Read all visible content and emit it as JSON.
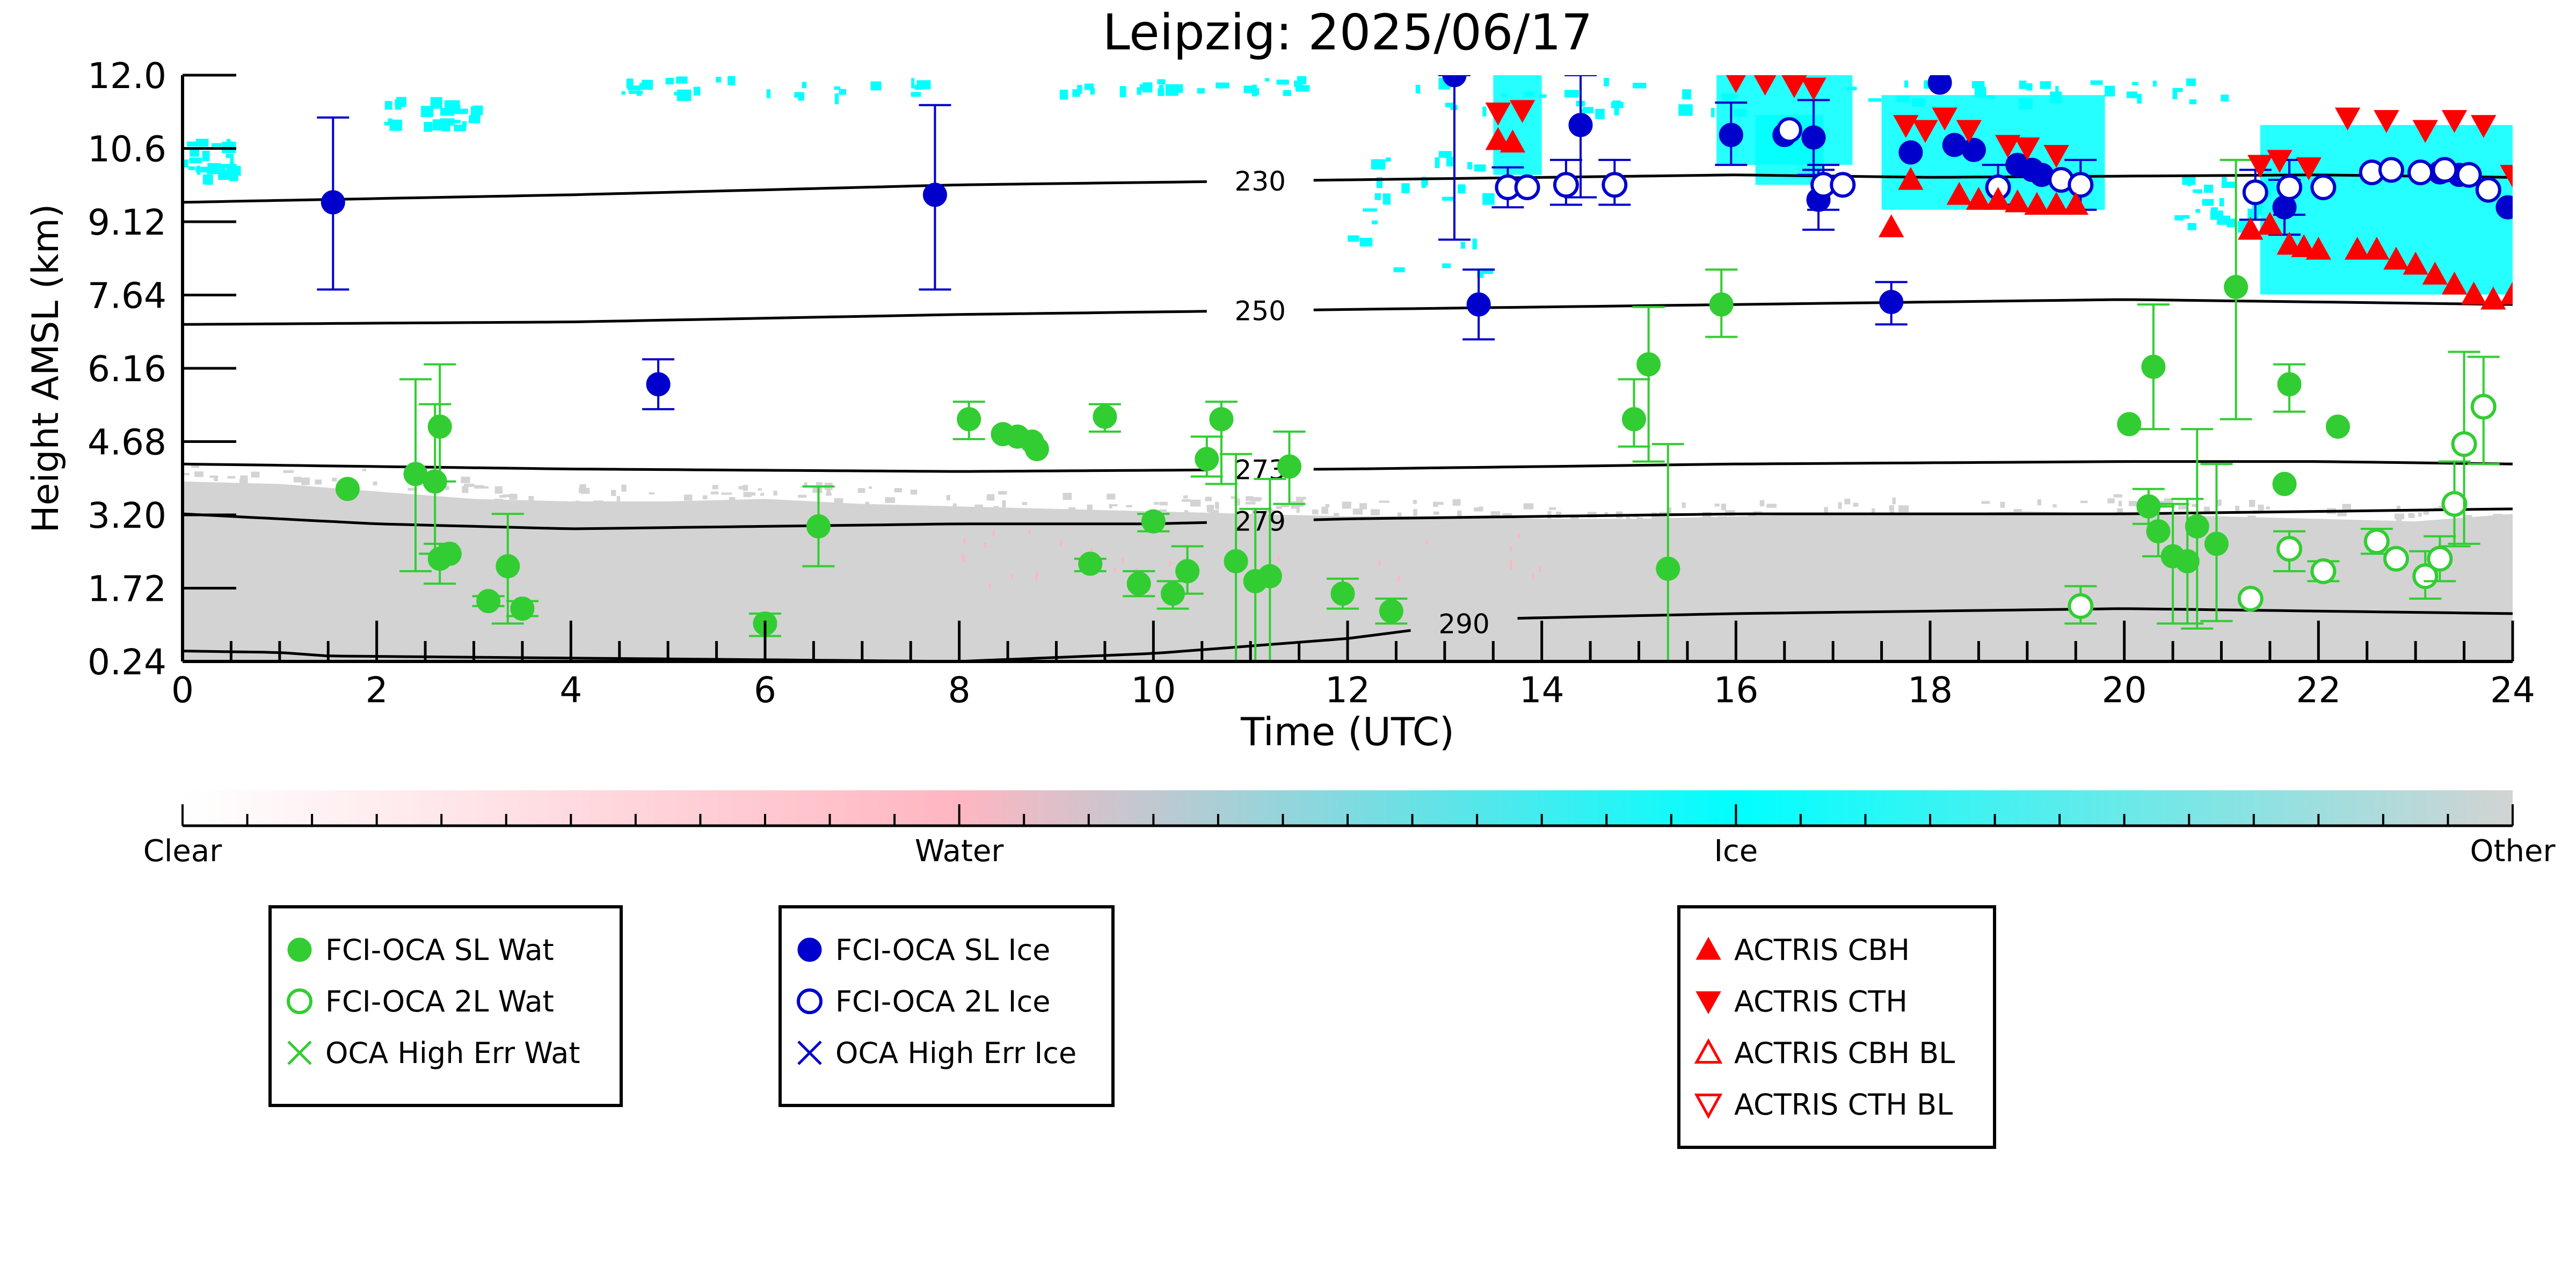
{
  "chart_data": {
    "type": "scatter",
    "title": "Leipzig: 2025/06/17",
    "xlabel": "Time (UTC)",
    "ylabel": "Height AMSL (km)",
    "xlim": [
      0,
      24
    ],
    "ylim": [
      0.24,
      12.0
    ],
    "x_ticks": [
      "0",
      "2",
      "4",
      "6",
      "8",
      "10",
      "12",
      "14",
      "16",
      "18",
      "20",
      "22",
      "24"
    ],
    "y_ticks": [
      "0.24",
      "1.72",
      "3.20",
      "4.68",
      "6.16",
      "7.64",
      "9.12",
      "10.6",
      "12.0"
    ],
    "colorbar": {
      "labels": [
        "Clear",
        "Water",
        "Ice",
        "Other"
      ],
      "colors": [
        "#ffffff",
        "#ffb6c1",
        "#00ffff",
        "#d3d3d3"
      ]
    },
    "isotherms": [
      {
        "label": "230",
        "x": [
          0,
          4,
          8,
          12,
          16,
          18,
          22,
          24
        ],
        "y": [
          9.45,
          9.6,
          9.8,
          9.9,
          10.0,
          9.95,
          10.0,
          9.95
        ]
      },
      {
        "label": "250",
        "x": [
          0,
          4,
          8,
          12,
          16,
          18,
          20,
          24
        ],
        "y": [
          7.0,
          7.05,
          7.2,
          7.3,
          7.4,
          7.45,
          7.5,
          7.4
        ]
      },
      {
        "label": "273",
        "x": [
          0,
          4,
          8,
          12,
          16,
          20,
          22,
          24
        ],
        "y": [
          4.2,
          4.1,
          4.05,
          4.1,
          4.2,
          4.25,
          4.25,
          4.2
        ]
      },
      {
        "label": "279",
        "x": [
          0,
          2,
          4,
          6,
          8,
          10,
          12,
          16,
          20,
          24
        ],
        "y": [
          3.2,
          3.0,
          2.9,
          2.95,
          3.0,
          3.0,
          3.1,
          3.2,
          3.2,
          3.3
        ]
      },
      {
        "label": "290",
        "x": [
          0,
          1,
          1.5,
          8,
          10,
          12,
          13.6,
          16,
          18,
          20,
          22,
          24
        ],
        "y": [
          0.45,
          0.42,
          0.35,
          0.24,
          0.4,
          0.7,
          1.1,
          1.2,
          1.25,
          1.3,
          1.25,
          1.2
        ]
      }
    ],
    "series": [
      {
        "name": "FCI-OCA SL Wat",
        "color": "#32cd32",
        "marker": "circle-filled",
        "points": [
          [
            1.7,
            3.7,
            null,
            null
          ],
          [
            2.4,
            4.0,
            2.05,
            5.9
          ],
          [
            2.6,
            3.85,
            2.4,
            5.4
          ],
          [
            2.65,
            4.95,
            3.85,
            6.2
          ],
          [
            2.65,
            2.3,
            1.8,
            2.6
          ],
          [
            2.75,
            2.4,
            null,
            null
          ],
          [
            3.15,
            1.45,
            1.35,
            1.55
          ],
          [
            3.35,
            2.15,
            1.0,
            3.2
          ],
          [
            3.5,
            1.3,
            1.15,
            1.45
          ],
          [
            6.0,
            1.0,
            0.75,
            1.2
          ],
          [
            6.55,
            2.95,
            2.15,
            3.75
          ],
          [
            8.1,
            5.1,
            4.7,
            5.45
          ],
          [
            8.45,
            4.8,
            null,
            null
          ],
          [
            8.6,
            4.75,
            null,
            null
          ],
          [
            8.75,
            4.65,
            null,
            null
          ],
          [
            8.8,
            4.5,
            null,
            null
          ],
          [
            9.35,
            2.2,
            2.05,
            2.3
          ],
          [
            9.5,
            5.15,
            4.85,
            5.4
          ],
          [
            9.85,
            1.8,
            1.55,
            2.05
          ],
          [
            10.0,
            3.05,
            2.85,
            3.2
          ],
          [
            10.2,
            1.6,
            1.3,
            1.85
          ],
          [
            10.35,
            2.05,
            1.6,
            2.55
          ],
          [
            10.55,
            4.3,
            3.95,
            4.75
          ],
          [
            10.7,
            5.1,
            3.8,
            5.45
          ],
          [
            10.85,
            2.25,
            0.24,
            4.4
          ],
          [
            11.05,
            1.85,
            0.24,
            3.3
          ],
          [
            11.2,
            1.95,
            0.24,
            3.9
          ],
          [
            11.4,
            4.15,
            3.4,
            4.85
          ],
          [
            11.95,
            1.6,
            1.3,
            1.9
          ],
          [
            12.45,
            1.25,
            1.0,
            1.5
          ],
          [
            14.95,
            5.1,
            4.55,
            5.9
          ],
          [
            15.1,
            6.2,
            4.25,
            7.35
          ],
          [
            15.3,
            2.1,
            0.24,
            4.6
          ],
          [
            15.85,
            7.4,
            6.75,
            8.1
          ],
          [
            20.05,
            5.0,
            null,
            null
          ],
          [
            20.25,
            3.35,
            3.0,
            3.7
          ],
          [
            20.3,
            6.15,
            4.9,
            7.4
          ],
          [
            20.35,
            2.85,
            2.35,
            3.35
          ],
          [
            20.5,
            2.35,
            1.0,
            3.4
          ],
          [
            20.65,
            2.25,
            1.0,
            3.5
          ],
          [
            20.75,
            2.95,
            0.9,
            4.9
          ],
          [
            20.95,
            2.6,
            1.05,
            4.2
          ],
          [
            21.15,
            7.75,
            5.1,
            10.3
          ],
          [
            21.65,
            3.8,
            null,
            null
          ],
          [
            21.7,
            5.8,
            5.25,
            6.2
          ],
          [
            22.2,
            4.95,
            null,
            null
          ]
        ]
      },
      {
        "name": "FCI-OCA 2L Wat",
        "color": "#32cd32",
        "marker": "circle-open",
        "points": [
          [
            19.55,
            1.35,
            1.0,
            1.75
          ],
          [
            21.3,
            1.5,
            null,
            null
          ],
          [
            21.7,
            2.5,
            2.05,
            2.85
          ],
          [
            22.05,
            2.05,
            1.85,
            2.25
          ],
          [
            22.6,
            2.65,
            2.4,
            2.9
          ],
          [
            22.8,
            2.3,
            null,
            null
          ],
          [
            23.1,
            1.95,
            1.5,
            2.45
          ],
          [
            23.25,
            2.3,
            1.85,
            2.75
          ],
          [
            23.4,
            3.4,
            2.55,
            4.25
          ],
          [
            23.5,
            4.6,
            2.6,
            6.45
          ],
          [
            23.7,
            5.35,
            4.2,
            6.35
          ]
        ]
      },
      {
        "name": "OCA High Err Wat",
        "color": "#32cd32",
        "marker": "x",
        "points": []
      },
      {
        "name": "FCI-OCA SL Ice",
        "color": "#0000cd",
        "marker": "circle-filled",
        "points": [
          [
            1.55,
            9.45,
            7.7,
            11.15
          ],
          [
            4.9,
            5.8,
            5.3,
            6.3
          ],
          [
            7.75,
            9.6,
            7.7,
            11.4
          ],
          [
            13.1,
            12.0,
            8.7,
            12.0
          ],
          [
            13.35,
            7.4,
            6.7,
            8.1
          ],
          [
            14.4,
            11.0,
            9.55,
            12.0
          ],
          [
            15.95,
            10.8,
            10.2,
            11.45
          ],
          [
            16.5,
            10.8,
            null,
            null
          ],
          [
            16.8,
            10.75,
            10.0,
            11.5
          ],
          [
            16.85,
            9.5,
            8.9,
            10.1
          ],
          [
            17.6,
            7.45,
            7.0,
            7.85
          ],
          [
            17.8,
            10.45,
            null,
            null
          ],
          [
            18.1,
            11.85,
            null,
            null
          ],
          [
            18.25,
            10.6,
            null,
            null
          ],
          [
            18.45,
            10.5,
            null,
            null
          ],
          [
            18.9,
            10.2,
            null,
            null
          ],
          [
            19.05,
            10.1,
            null,
            null
          ],
          [
            19.15,
            10.0,
            null,
            null
          ],
          [
            23.25,
            10.05,
            null,
            null
          ],
          [
            23.45,
            10.0,
            null,
            null
          ],
          [
            21.65,
            9.35,
            8.8,
            9.9
          ],
          [
            23.95,
            9.35,
            null,
            null
          ]
        ]
      },
      {
        "name": "FCI-OCA 2L Ice",
        "color": "#0000cd",
        "marker": "circle-open",
        "points": [
          [
            13.65,
            9.75,
            9.35,
            10.15
          ],
          [
            13.85,
            9.75,
            null,
            null
          ],
          [
            14.25,
            9.8,
            9.4,
            10.3
          ],
          [
            14.75,
            9.8,
            9.4,
            10.3
          ],
          [
            16.55,
            10.9,
            null,
            null
          ],
          [
            16.9,
            9.8,
            9.3,
            10.2
          ],
          [
            17.1,
            9.8,
            null,
            null
          ],
          [
            18.7,
            9.75,
            9.4,
            10.2
          ],
          [
            19.35,
            9.9,
            null,
            null
          ],
          [
            19.55,
            9.8,
            9.3,
            10.3
          ],
          [
            21.35,
            9.65,
            9.1,
            10.1
          ],
          [
            21.7,
            9.75,
            9.2,
            10.3
          ],
          [
            22.05,
            9.75,
            null,
            null
          ],
          [
            22.55,
            10.05,
            null,
            null
          ],
          [
            22.75,
            10.1,
            null,
            null
          ],
          [
            23.05,
            10.05,
            null,
            null
          ],
          [
            23.3,
            10.1,
            null,
            null
          ],
          [
            23.55,
            10.0,
            null,
            null
          ],
          [
            23.75,
            9.7,
            null,
            null
          ]
        ]
      },
      {
        "name": "OCA High Err Ice",
        "color": "#0000cd",
        "marker": "x",
        "points": []
      },
      {
        "name": "ACTRIS CBH",
        "color": "#ff0000",
        "marker": "triangle-up-filled",
        "points": [
          [
            13.55,
            10.7
          ],
          [
            13.7,
            10.65
          ],
          [
            17.6,
            8.95
          ],
          [
            17.8,
            9.9
          ],
          [
            18.3,
            9.6
          ],
          [
            18.5,
            9.5
          ],
          [
            18.7,
            9.5
          ],
          [
            18.9,
            9.45
          ],
          [
            19.1,
            9.4
          ],
          [
            19.3,
            9.4
          ],
          [
            19.5,
            9.4
          ],
          [
            21.3,
            8.9
          ],
          [
            21.5,
            9.0
          ],
          [
            21.7,
            8.6
          ],
          [
            21.85,
            8.55
          ],
          [
            22.0,
            8.5
          ],
          [
            22.4,
            8.5
          ],
          [
            22.6,
            8.5
          ],
          [
            22.8,
            8.3
          ],
          [
            23.0,
            8.2
          ],
          [
            23.2,
            8.0
          ],
          [
            23.4,
            7.8
          ],
          [
            23.6,
            7.6
          ],
          [
            23.8,
            7.5
          ],
          [
            24.0,
            7.6
          ]
        ]
      },
      {
        "name": "ACTRIS CTH",
        "color": "#ff0000",
        "marker": "triangle-down-filled",
        "points": [
          [
            13.55,
            11.25
          ],
          [
            13.8,
            11.3
          ],
          [
            16.0,
            11.9
          ],
          [
            16.3,
            11.85
          ],
          [
            16.6,
            11.8
          ],
          [
            16.8,
            11.75
          ],
          [
            17.75,
            11.0
          ],
          [
            17.95,
            10.9
          ],
          [
            18.15,
            11.15
          ],
          [
            18.4,
            10.9
          ],
          [
            18.8,
            10.6
          ],
          [
            19.0,
            10.55
          ],
          [
            19.3,
            10.4
          ],
          [
            21.4,
            10.2
          ],
          [
            21.6,
            10.3
          ],
          [
            21.9,
            10.15
          ],
          [
            22.3,
            11.15
          ],
          [
            22.7,
            11.1
          ],
          [
            23.1,
            10.9
          ],
          [
            23.4,
            11.1
          ],
          [
            23.7,
            11.0
          ],
          [
            24.0,
            10.0
          ]
        ]
      },
      {
        "name": "ACTRIS CBH BL",
        "color": "#ff0000",
        "marker": "triangle-up-open",
        "points": []
      },
      {
        "name": "ACTRIS CTH BL",
        "color": "#ff0000",
        "marker": "triangle-down-open",
        "points": []
      }
    ],
    "legends": [
      {
        "entries": [
          "FCI-OCA SL Wat",
          "FCI-OCA 2L Wat",
          "OCA High Err Wat"
        ],
        "placement": "lower-left"
      },
      {
        "entries": [
          "FCI-OCA SL Ice",
          "FCI-OCA 2L Ice",
          "OCA High Err Ice"
        ],
        "placement": "lower-center-left"
      },
      {
        "entries": [
          "ACTRIS CBH",
          "ACTRIS CTH",
          "ACTRIS CBH BL",
          "ACTRIS CTH BL"
        ],
        "placement": "lower-right"
      }
    ]
  }
}
